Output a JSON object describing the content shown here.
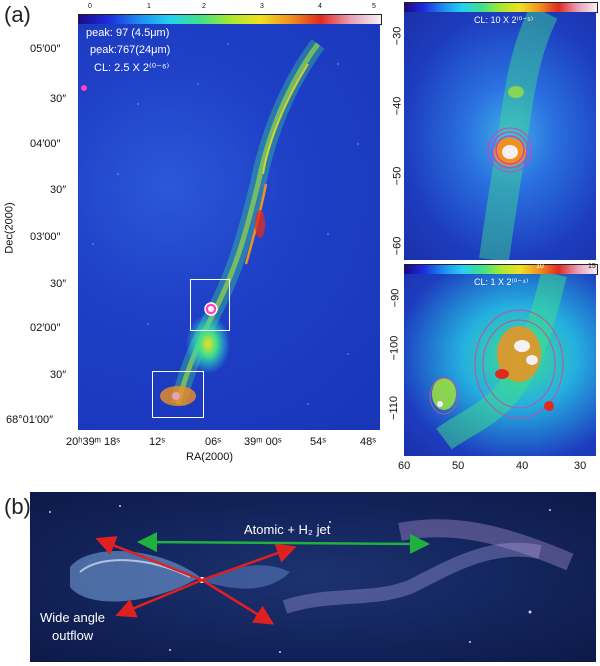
{
  "panel_a": {
    "label": "(a)",
    "colorbar_ticks": [
      "0",
      "1",
      "2",
      "3",
      "4",
      "5"
    ],
    "annotations": [
      "peak: 97 (4.5μm)",
      "peak:767(24μm)",
      "CL: 2.5 X 2⁽⁰⁻⁶⁾"
    ],
    "dec_ticks": [
      "05′00″",
      "30″",
      "04′00″",
      "30″",
      "03′00″",
      "30″",
      "02′00″",
      "30″",
      "68°01′00″"
    ],
    "ra_ticks": [
      "20ʰ39ᵐ 18ˢ",
      "12ˢ",
      "06ˢ",
      "39ᵐ 00ˢ",
      "54ˢ",
      "48ˢ"
    ],
    "xlabel": "RA(2000)",
    "ylabel": "Dec(2000)"
  },
  "inset_top": {
    "colorbar_ticks": [],
    "annotation": "CL: 10 X 2⁽⁰⁻⁵⁾",
    "y_ticks": [
      "−30",
      "−40",
      "−50",
      "−60"
    ]
  },
  "inset_bottom": {
    "colorbar_ticks": [
      "10",
      "15"
    ],
    "annotation": "CL: 1 X 2⁽⁰⁻⁴⁾",
    "y_ticks": [
      "−90",
      "−100",
      "−110"
    ],
    "x_ticks": [
      "60",
      "50",
      "40",
      "30"
    ]
  },
  "panel_b": {
    "label": "(b)",
    "jet_label": "Atomic + H₂ jet",
    "outflow_label_1": "Wide angle",
    "outflow_label_2": "outflow"
  }
}
